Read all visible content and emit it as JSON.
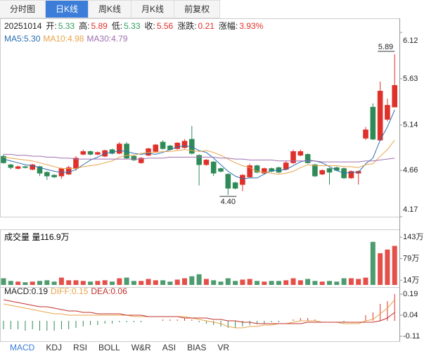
{
  "tabs": [
    {
      "label": "分时图"
    },
    {
      "label": "日K线",
      "active": true
    },
    {
      "label": "周K线"
    },
    {
      "label": "月K线"
    },
    {
      "label": "前复权"
    }
  ],
  "indicator_tabs": [
    {
      "label": "MACD",
      "active": true
    },
    {
      "label": "KDJ"
    },
    {
      "label": "RSI"
    },
    {
      "label": "BOLL"
    },
    {
      "label": "W&R"
    },
    {
      "label": "ASI"
    },
    {
      "label": "BIAS"
    },
    {
      "label": "VR"
    }
  ],
  "chart_data": {
    "type": "candlestick",
    "date": "20251014",
    "quote": [
      {
        "label": "开:",
        "value": "5.33",
        "color": "#2e9e5b"
      },
      {
        "label": "高:",
        "value": "5.89",
        "color": "#e0302a"
      },
      {
        "label": "低:",
        "value": "5.33",
        "color": "#2e9e5b"
      },
      {
        "label": "收:",
        "value": "5.56",
        "color": "#e0302a"
      },
      {
        "label": "涨跌:",
        "value": "0.21",
        "color": "#e0302a"
      },
      {
        "label": "涨幅:",
        "value": "3.93%",
        "color": "#e0302a"
      }
    ],
    "up_color": "#e0302a",
    "down_color": "#2e8b57",
    "open": [
      4.81,
      4.72,
      4.68,
      4.7,
      4.67,
      4.7,
      4.64,
      4.61,
      4.6,
      4.62,
      4.68,
      4.83,
      4.86,
      4.83,
      4.81,
      4.88,
      4.84,
      4.94,
      4.81,
      4.74,
      4.82,
      4.86,
      4.96,
      4.92,
      4.89,
      4.9,
      4.99,
      4.82,
      4.72,
      4.75,
      4.68,
      4.62,
      4.53,
      4.51,
      4.59,
      4.71,
      4.63,
      4.68,
      4.69,
      4.67,
      4.74,
      4.82,
      4.83,
      4.72,
      4.62,
      4.68,
      4.69,
      4.68,
      4.58,
      4.63,
      5.0,
      5.33,
      4.98,
      5.2,
      5.33
    ],
    "high": [
      4.83,
      4.73,
      4.71,
      4.71,
      4.73,
      4.71,
      4.65,
      4.62,
      4.69,
      4.71,
      4.81,
      4.88,
      4.87,
      4.86,
      4.88,
      4.89,
      4.96,
      4.96,
      4.82,
      4.8,
      4.9,
      4.94,
      4.98,
      4.93,
      4.96,
      4.99,
      5.13,
      4.83,
      4.78,
      4.76,
      4.69,
      4.63,
      4.54,
      4.62,
      4.73,
      4.72,
      4.69,
      4.69,
      4.7,
      4.76,
      4.88,
      4.88,
      4.84,
      4.73,
      4.67,
      4.69,
      4.7,
      4.69,
      4.66,
      4.66,
      5.12,
      5.37,
      5.6,
      5.42,
      5.89
    ],
    "low": [
      4.73,
      4.67,
      4.67,
      4.68,
      4.66,
      4.6,
      4.56,
      4.58,
      4.57,
      4.61,
      4.66,
      4.82,
      4.82,
      4.82,
      4.8,
      4.83,
      4.83,
      4.78,
      4.76,
      4.73,
      4.81,
      4.85,
      4.88,
      4.87,
      4.88,
      4.89,
      4.83,
      4.5,
      4.71,
      4.6,
      4.64,
      4.4,
      4.46,
      4.44,
      4.58,
      4.63,
      4.62,
      4.64,
      4.63,
      4.66,
      4.73,
      4.81,
      4.73,
      4.59,
      4.61,
      4.51,
      4.65,
      4.57,
      4.57,
      4.51,
      4.98,
      4.98,
      4.97,
      5.18,
      5.33
    ],
    "close": [
      4.74,
      4.69,
      4.7,
      4.69,
      4.72,
      4.63,
      4.6,
      4.59,
      4.68,
      4.69,
      4.79,
      4.86,
      4.83,
      4.85,
      4.87,
      4.84,
      4.94,
      4.79,
      4.77,
      4.79,
      4.89,
      4.93,
      4.89,
      4.88,
      4.95,
      4.97,
      4.84,
      4.72,
      4.77,
      4.63,
      4.65,
      4.47,
      4.47,
      4.61,
      4.71,
      4.64,
      4.68,
      4.65,
      4.64,
      4.74,
      4.86,
      4.86,
      4.74,
      4.6,
      4.66,
      4.64,
      4.66,
      4.58,
      4.65,
      4.65,
      5.09,
      4.99,
      5.5,
      5.35,
      5.56
    ],
    "ylim": [
      4.17,
      6.24
    ],
    "yticks": [
      6.12,
      5.63,
      5.14,
      4.66,
      4.17
    ],
    "ma": [
      {
        "name": "MA5:",
        "current": "5.30",
        "color": "#2a6fb0",
        "values": [
          4.78,
          4.76,
          4.74,
          4.72,
          4.71,
          4.69,
          4.67,
          4.65,
          4.64,
          4.64,
          4.67,
          4.72,
          4.77,
          4.8,
          4.84,
          4.85,
          4.87,
          4.86,
          4.84,
          4.83,
          4.84,
          4.83,
          4.85,
          4.88,
          4.91,
          4.92,
          4.91,
          4.87,
          4.85,
          4.79,
          4.72,
          4.65,
          4.6,
          4.57,
          4.58,
          4.58,
          4.62,
          4.66,
          4.66,
          4.67,
          4.71,
          4.75,
          4.77,
          4.76,
          4.74,
          4.7,
          4.66,
          4.63,
          4.64,
          4.64,
          4.73,
          4.79,
          4.98,
          5.12,
          5.3
        ]
      },
      {
        "name": "MA10:",
        "current": "4.98",
        "color": "#e8a34a",
        "values": [
          4.8,
          4.79,
          4.78,
          4.77,
          4.76,
          4.74,
          4.72,
          4.7,
          4.68,
          4.68,
          4.68,
          4.7,
          4.71,
          4.72,
          4.74,
          4.76,
          4.8,
          4.82,
          4.82,
          4.84,
          4.85,
          4.85,
          4.86,
          4.86,
          4.87,
          4.88,
          4.87,
          4.86,
          4.87,
          4.85,
          4.82,
          4.78,
          4.74,
          4.71,
          4.69,
          4.65,
          4.64,
          4.63,
          4.62,
          4.63,
          4.65,
          4.69,
          4.72,
          4.71,
          4.71,
          4.71,
          4.71,
          4.7,
          4.7,
          4.69,
          4.72,
          4.73,
          4.81,
          4.88,
          4.98
        ]
      },
      {
        "name": "MA30:",
        "current": "4.79",
        "color": "#a070b0",
        "values": [
          4.83,
          4.83,
          4.82,
          4.82,
          4.81,
          4.81,
          4.8,
          4.8,
          4.79,
          4.79,
          4.78,
          4.78,
          4.78,
          4.78,
          4.78,
          4.78,
          4.78,
          4.78,
          4.78,
          4.78,
          4.79,
          4.79,
          4.79,
          4.8,
          4.8,
          4.8,
          4.8,
          4.8,
          4.8,
          4.8,
          4.79,
          4.79,
          4.78,
          4.78,
          4.77,
          4.77,
          4.77,
          4.77,
          4.76,
          4.76,
          4.76,
          4.76,
          4.76,
          4.76,
          4.75,
          4.75,
          4.75,
          4.75,
          4.75,
          4.75,
          4.76,
          4.76,
          4.77,
          4.78,
          4.79
        ]
      }
    ],
    "annotations": [
      {
        "text": "5.89",
        "at": "high"
      },
      {
        "text": "4.40",
        "at": "low"
      }
    ],
    "volume": {
      "title": "成交量",
      "current": "量116.9万",
      "ylim": [
        0,
        158
      ],
      "yticks": [
        {
          "value": 143,
          "label": "143万"
        },
        {
          "value": 79,
          "label": "79万"
        },
        {
          "value": 14,
          "label": "14万"
        }
      ],
      "values": [
        20,
        12,
        10,
        8,
        10,
        12,
        14,
        10,
        22,
        14,
        14,
        12,
        10,
        12,
        14,
        10,
        20,
        22,
        12,
        12,
        18,
        14,
        14,
        10,
        16,
        20,
        26,
        32,
        18,
        14,
        10,
        20,
        12,
        16,
        18,
        12,
        10,
        12,
        12,
        14,
        20,
        14,
        18,
        12,
        10,
        12,
        10,
        20,
        20,
        18,
        22,
        129,
        95,
        106,
        116.9
      ]
    },
    "macd": {
      "ylim": [
        -0.14,
        0.24
      ],
      "yticks": [
        0.19,
        0.04,
        -0.11
      ],
      "series": [
        {
          "name": "MACD:",
          "current": "0.19",
          "color": "#222222",
          "style": "bar",
          "values": [
            -0.06,
            -0.06,
            -0.06,
            -0.07,
            -0.06,
            -0.07,
            -0.07,
            -0.07,
            -0.06,
            -0.06,
            -0.05,
            -0.04,
            -0.03,
            -0.03,
            -0.02,
            -0.02,
            -0.01,
            -0.01,
            -0.01,
            -0.01,
            0.0,
            0.0,
            0.01,
            0.01,
            0.01,
            0.02,
            0.01,
            -0.01,
            -0.02,
            -0.03,
            -0.04,
            -0.05,
            -0.05,
            -0.04,
            -0.03,
            -0.02,
            -0.02,
            -0.01,
            -0.01,
            0.0,
            0.01,
            0.02,
            0.02,
            0.01,
            0.0,
            0.0,
            0.0,
            -0.01,
            0.0,
            0.0,
            0.04,
            0.06,
            0.12,
            0.14,
            0.19
          ]
        },
        {
          "name": "DIFF:",
          "current": "0.15",
          "color": "#e8a34a",
          "style": "line",
          "values": [
            0.12,
            0.11,
            0.1,
            0.09,
            0.08,
            0.07,
            0.06,
            0.05,
            0.05,
            0.04,
            0.04,
            0.04,
            0.04,
            0.04,
            0.04,
            0.04,
            0.04,
            0.04,
            0.03,
            0.03,
            0.03,
            0.03,
            0.03,
            0.03,
            0.03,
            0.03,
            0.02,
            0.01,
            0.0,
            -0.01,
            -0.02,
            -0.04,
            -0.05,
            -0.05,
            -0.04,
            -0.04,
            -0.03,
            -0.03,
            -0.02,
            -0.02,
            -0.01,
            0.0,
            0.0,
            0.0,
            -0.01,
            -0.01,
            -0.01,
            -0.02,
            -0.02,
            -0.02,
            0.0,
            0.01,
            0.05,
            0.09,
            0.15
          ]
        },
        {
          "name": "DEA:",
          "current": "0.06",
          "color": "#c0302a",
          "style": "line",
          "values": [
            0.15,
            0.14,
            0.13,
            0.12,
            0.11,
            0.1,
            0.1,
            0.09,
            0.08,
            0.07,
            0.07,
            0.06,
            0.06,
            0.05,
            0.05,
            0.05,
            0.05,
            0.04,
            0.04,
            0.04,
            0.03,
            0.03,
            0.03,
            0.03,
            0.03,
            0.02,
            0.02,
            0.02,
            0.02,
            0.01,
            0.01,
            0.0,
            0.0,
            -0.01,
            -0.01,
            -0.02,
            -0.02,
            -0.02,
            -0.02,
            -0.02,
            -0.02,
            -0.02,
            -0.01,
            -0.01,
            -0.01,
            -0.01,
            -0.01,
            -0.01,
            -0.01,
            -0.01,
            -0.01,
            -0.01,
            0.0,
            0.02,
            0.06
          ]
        }
      ]
    }
  }
}
